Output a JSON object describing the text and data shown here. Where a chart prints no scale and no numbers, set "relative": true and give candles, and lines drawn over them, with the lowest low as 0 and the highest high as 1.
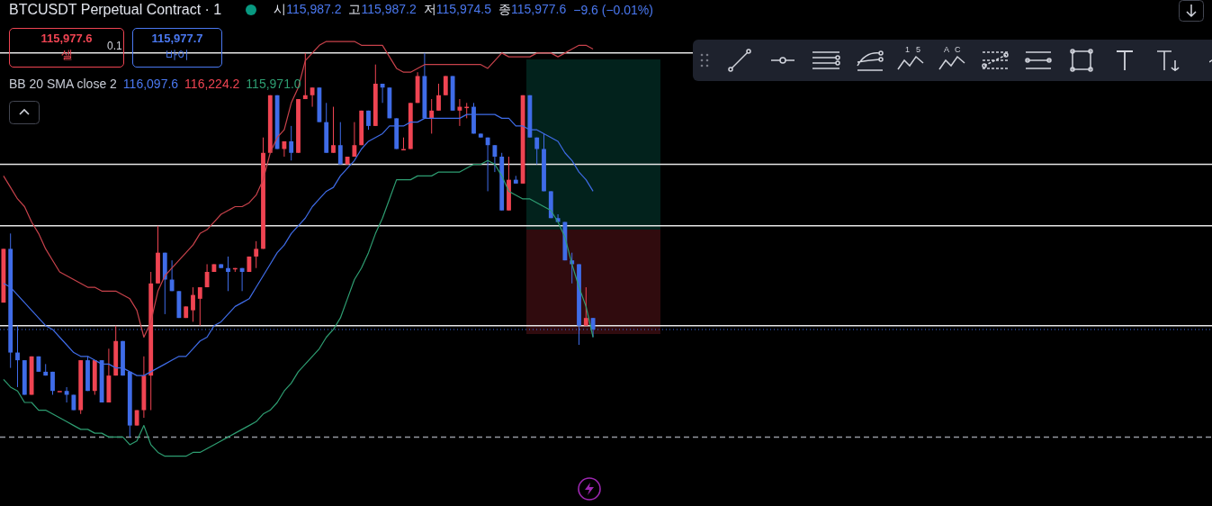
{
  "chart_data": {
    "type": "candlestick",
    "relative": true,
    "title": "BTCUSDT Perpetual Contract · 1",
    "annotations": [
      "시115,987.2",
      "고115,987.2",
      "저115,974.5",
      "종115,977.6",
      "−9.6 (−0.01%)",
      "115,977.6",
      "셀",
      "0.1",
      "115,977.7",
      "바이",
      "BB 20 SMA close 2",
      "116,097.6",
      "116,224.2",
      "115,971.0",
      "1",
      "5",
      "A",
      "C"
    ],
    "categories": [
      null,
      null,
      null,
      null,
      null,
      null,
      null,
      null,
      null,
      null,
      null,
      null,
      null,
      null,
      null,
      null,
      null,
      null,
      null,
      null,
      null,
      null,
      null,
      null,
      null,
      null,
      null,
      null,
      null,
      null,
      null,
      null,
      null,
      null,
      null,
      null,
      null,
      null,
      null,
      null,
      null,
      null,
      null,
      null,
      null,
      null,
      null,
      null,
      null,
      null,
      null,
      null,
      null,
      null,
      null,
      null,
      null,
      null,
      null,
      null,
      null,
      null,
      null,
      null,
      null,
      null,
      null,
      null,
      null,
      null,
      null,
      null,
      null,
      null,
      null,
      null,
      null,
      null,
      null,
      null,
      null,
      null,
      null,
      null,
      null
    ],
    "ohlc": [
      [
        0.35,
        0.49,
        0.35,
        0.49
      ],
      [
        0.49,
        0.53,
        0.18,
        0.22
      ],
      [
        0.22,
        0.29,
        0.13,
        0.2
      ],
      [
        0.2,
        0.2,
        0.11,
        0.11
      ],
      [
        0.11,
        0.21,
        0.11,
        0.21
      ],
      [
        0.21,
        0.21,
        0.17,
        0.17
      ],
      [
        0.17,
        0.19,
        0.16,
        0.16
      ],
      [
        0.17,
        0.17,
        0.11,
        0.12
      ],
      [
        0.12,
        0.12,
        0.12,
        0.12
      ],
      [
        0.12,
        0.13,
        0.09,
        0.11
      ],
      [
        0.11,
        0.11,
        0.07,
        0.07
      ],
      [
        0.07,
        0.2,
        0.06,
        0.2
      ],
      [
        0.2,
        0.21,
        0.12,
        0.12
      ],
      [
        0.12,
        0.2,
        0.11,
        0.2
      ],
      [
        0.2,
        0.2,
        0.09,
        0.09
      ],
      [
        0.09,
        0.23,
        0.09,
        0.16
      ],
      [
        0.16,
        0.29,
        0.16,
        0.25
      ],
      [
        0.25,
        0.25,
        0.16,
        0.16
      ],
      [
        0.17,
        0.17,
        0,
        0.03
      ],
      [
        0.03,
        0.07,
        0.03,
        0.07
      ],
      [
        0.07,
        0.21,
        0.05,
        0.16
      ],
      [
        0.16,
        0.43,
        0.07,
        0.4
      ],
      [
        0.4,
        0.55,
        0.4,
        0.48
      ],
      [
        0.48,
        0.48,
        0.32,
        0.41
      ],
      [
        0.41,
        0.46,
        0.38,
        0.38
      ],
      [
        0.38,
        0.38,
        0.31,
        0.31
      ],
      [
        0.31,
        0.34,
        0.31,
        0.34
      ],
      [
        0.33,
        0.39,
        0.3,
        0.37
      ],
      [
        0.36,
        0.39,
        0.29,
        0.39
      ],
      [
        0.39,
        0.45,
        0.39,
        0.43
      ],
      [
        0.43,
        0.45,
        0.43,
        0.45
      ],
      [
        0.45,
        0.45,
        0.44,
        0.44
      ],
      [
        0.44,
        0.47,
        0.38,
        0.43
      ],
      [
        0.44,
        0.44,
        0.43,
        0.44
      ],
      [
        0.44,
        0.44,
        0.38,
        0.43
      ],
      [
        0.43,
        0.47,
        0.43,
        0.47
      ],
      [
        0.47,
        0.51,
        0.44,
        0.49
      ],
      [
        0.49,
        0.78,
        0.49,
        0.74
      ],
      [
        0.74,
        0.89,
        0.74,
        0.89
      ],
      [
        0.89,
        0.89,
        0.75,
        0.75
      ],
      [
        0.75,
        0.77,
        0.73,
        0.77
      ],
      [
        0.77,
        0.81,
        0.72,
        0.74
      ],
      [
        0.74,
        0.88,
        0.74,
        0.88
      ],
      [
        0.88,
        1,
        0.88,
        0.89
      ],
      [
        0.89,
        0.91,
        0.86,
        0.91
      ],
      [
        0.91,
        0.91,
        0.82,
        0.82
      ],
      [
        0.82,
        0.87,
        0.74,
        0.74
      ],
      [
        0.74,
        0.86,
        0.74,
        0.76
      ],
      [
        0.76,
        0.82,
        0.71,
        0.71
      ],
      [
        0.71,
        0.73,
        0.71,
        0.73
      ],
      [
        0.73,
        0.82,
        0.73,
        0.76
      ],
      [
        0.76,
        0.85,
        0.76,
        0.85
      ],
      [
        0.85,
        0.85,
        0.8,
        0.81
      ],
      [
        0.81,
        0.97,
        0.81,
        0.92
      ],
      [
        0.92,
        0.92,
        0.87,
        0.91
      ],
      [
        0.91,
        0.91,
        0.83,
        0.83
      ],
      [
        0.83,
        0.83,
        0.75,
        0.75
      ],
      [
        0.75,
        0.78,
        0.75,
        0.75
      ],
      [
        0.75,
        0.87,
        0.75,
        0.87
      ],
      [
        0.87,
        0.95,
        0.87,
        0.94
      ],
      [
        0.94,
        1,
        0.83,
        0.83
      ],
      [
        0.83,
        0.88,
        0.79,
        0.85
      ],
      [
        0.85,
        0.92,
        0.85,
        0.89
      ],
      [
        0.89,
        0.94,
        0.89,
        0.94
      ],
      [
        0.94,
        0.94,
        0.85,
        0.85
      ],
      [
        0.85,
        0.88,
        0.81,
        0.86
      ],
      [
        0.86,
        0.87,
        0.83,
        0.86
      ],
      [
        0.86,
        0.87,
        0.79,
        0.79
      ],
      [
        0.79,
        0.79,
        0.78,
        0.78
      ],
      [
        0.78,
        0.78,
        0.64,
        0.76
      ],
      [
        0.76,
        0.76,
        0.69,
        0.73
      ],
      [
        0.73,
        0.74,
        0.59,
        0.59
      ],
      [
        0.59,
        0.73,
        0.59,
        0.67
      ],
      [
        0.67,
        0.68,
        0.66,
        0.66
      ],
      [
        0.66,
        0.89,
        0.66,
        0.89
      ],
      [
        0.89,
        0.89,
        0.78,
        0.78
      ],
      [
        0.78,
        0.78,
        0.71,
        0.75
      ],
      [
        0.75,
        0.79,
        0.64,
        0.64
      ],
      [
        0.64,
        0.64,
        0.57,
        0.57
      ],
      [
        0.57,
        0.58,
        0.56,
        0.56
      ],
      [
        0.56,
        0.56,
        0.46,
        0.46
      ],
      [
        0.46,
        0.48,
        0.4,
        0.45
      ],
      [
        0.45,
        0.45,
        0.24,
        0.29
      ],
      [
        0.29,
        0.39,
        0.29,
        0.31
      ],
      [
        0.31,
        0.31,
        0.26,
        0.28
      ]
    ],
    "colors": [
      "#ef4452",
      "#3f6ce8",
      "#3f6ce8",
      "#3f6ce8",
      "#ef4452",
      "#3f6ce8",
      "#3f6ce8",
      "#3f6ce8",
      "#ef4452",
      "#3f6ce8",
      "#3f6ce8",
      "#ef4452",
      "#3f6ce8",
      "#ef4452",
      "#3f6ce8",
      "#ef4452",
      "#ef4452",
      "#3f6ce8",
      "#3f6ce8",
      "#ef4452",
      "#ef4452",
      "#ef4452",
      "#ef4452",
      "#3f6ce8",
      "#3f6ce8",
      "#3f6ce8",
      "#ef4452",
      "#ef4452",
      "#ef4452",
      "#ef4452",
      "#ef4452",
      "#3f6ce8",
      "#3f6ce8",
      "#ef4452",
      "#3f6ce8",
      "#ef4452",
      "#ef4452",
      "#ef4452",
      "#ef4452",
      "#3f6ce8",
      "#ef4452",
      "#3f6ce8",
      "#ef4452",
      "#ef4452",
      "#ef4452",
      "#3f6ce8",
      "#3f6ce8",
      "#ef4452",
      "#3f6ce8",
      "#ef4452",
      "#ef4452",
      "#ef4452",
      "#3f6ce8",
      "#ef4452",
      "#3f6ce8",
      "#3f6ce8",
      "#3f6ce8",
      "#ef4452",
      "#ef4452",
      "#ef4452",
      "#3f6ce8",
      "#ef4452",
      "#ef4452",
      "#ef4452",
      "#3f6ce8",
      "#ef4452",
      "#ef4452",
      "#3f6ce8",
      "#3f6ce8",
      "#3f6ce8",
      "#3f6ce8",
      "#3f6ce8",
      "#ef4452",
      "#3f6ce8",
      "#ef4452",
      "#3f6ce8",
      "#3f6ce8",
      "#3f6ce8",
      "#3f6ce8",
      "#3f6ce8",
      "#3f6ce8",
      "#3f6ce8",
      "#3f6ce8",
      "#ef4452",
      "#3f6ce8"
    ],
    "series": [
      {
        "type": "line",
        "color": "#c8424b",
        "values": [
          0.68,
          0.65,
          0.62,
          0.6,
          0.56,
          0.53,
          0.49,
          0.46,
          0.43,
          0.42,
          0.41,
          0.4,
          0.39,
          0.39,
          0.38,
          0.38,
          0.38,
          0.37,
          0.36,
          0.33,
          0.26,
          0.3,
          0.38,
          0.42,
          0.44,
          0.46,
          0.48,
          0.5,
          0.53,
          0.54,
          0.56,
          0.58,
          0.59,
          0.6,
          0.6,
          0.61,
          0.63,
          0.67,
          0.74,
          0.78,
          0.8,
          0.87,
          0.91,
          0.98,
          1.0,
          1.02,
          1.03,
          1.03,
          1.03,
          1.03,
          1.03,
          1.02,
          1.02,
          1.02,
          1.02,
          0.99,
          0.96,
          0.95,
          0.95,
          0.96,
          0.97,
          0.97,
          0.97,
          0.97,
          0.97,
          0.97,
          0.97,
          0.97,
          0.97,
          0.96,
          0.98,
          1.0,
          0.99,
          0.99,
          0.99,
          0.99,
          1.0,
          1.0,
          1.0,
          0.99,
          1.0,
          1.01,
          1.02,
          1.02,
          1.01
        ]
      },
      {
        "type": "line",
        "color": "#3f6ce8",
        "values": [
          0.4,
          0.39,
          0.37,
          0.35,
          0.33,
          0.31,
          0.29,
          0.28,
          0.26,
          0.24,
          0.22,
          0.21,
          0.21,
          0.2,
          0.19,
          0.19,
          0.18,
          0.18,
          0.17,
          0.16,
          0.16,
          0.17,
          0.18,
          0.19,
          0.2,
          0.21,
          0.21,
          0.23,
          0.25,
          0.26,
          0.29,
          0.3,
          0.32,
          0.34,
          0.35,
          0.36,
          0.39,
          0.42,
          0.45,
          0.48,
          0.5,
          0.53,
          0.55,
          0.57,
          0.6,
          0.62,
          0.64,
          0.65,
          0.68,
          0.7,
          0.72,
          0.75,
          0.77,
          0.78,
          0.79,
          0.81,
          0.81,
          0.81,
          0.82,
          0.82,
          0.83,
          0.83,
          0.83,
          0.83,
          0.83,
          0.83,
          0.84,
          0.84,
          0.84,
          0.84,
          0.84,
          0.83,
          0.83,
          0.81,
          0.81,
          0.8,
          0.8,
          0.79,
          0.78,
          0.77,
          0.74,
          0.72,
          0.69,
          0.67,
          0.64
        ]
      },
      {
        "type": "line",
        "color": "#2e9e72",
        "values": [
          0.15,
          0.13,
          0.12,
          0.09,
          0.09,
          0.07,
          0.07,
          0.06,
          0.05,
          0.04,
          0.03,
          0.02,
          0.02,
          0.01,
          0.01,
          0.0,
          0.0,
          0,
          -0.02,
          -0.01,
          0.03,
          -0.02,
          -0.04,
          -0.05,
          -0.05,
          -0.05,
          -0.05,
          -0.04,
          -0.04,
          -0.03,
          -0.02,
          -0.01,
          0,
          0.01,
          0.02,
          0.03,
          0.04,
          0.06,
          0.07,
          0.09,
          0.12,
          0.14,
          0.17,
          0.19,
          0.21,
          0.23,
          0.26,
          0.28,
          0.31,
          0.36,
          0.41,
          0.44,
          0.48,
          0.53,
          0.57,
          0.62,
          0.67,
          0.67,
          0.67,
          0.68,
          0.68,
          0.68,
          0.69,
          0.69,
          0.69,
          0.69,
          0.7,
          0.71,
          0.71,
          0.72,
          0.71,
          0.68,
          0.64,
          0.63,
          0.62,
          0.62,
          0.61,
          0.6,
          0.59,
          0.56,
          0.52,
          0.45,
          0.39,
          0.34,
          0.26
        ]
      }
    ],
    "ref_lines": [
      {
        "axis": "y",
        "value": 1,
        "color": "#e6e6e6",
        "line_style": "solid"
      },
      {
        "axis": "y",
        "value": 0.71,
        "color": "#e6e6e6",
        "line_style": "solid"
      },
      {
        "axis": "y",
        "value": 0.55,
        "color": "#e6e6e6",
        "line_style": "solid"
      },
      {
        "axis": "y",
        "value": 0.29,
        "color": "#e6e6e6",
        "line_style": "solid"
      },
      {
        "axis": "y",
        "value": 0.28,
        "color": "#3f6ce8",
        "line_style": "dotted"
      },
      {
        "axis": "y",
        "value": 0,
        "color": "#9598a1",
        "line_style": "dashed"
      }
    ],
    "marker": "none",
    "legend": false,
    "tick_labels": false
  }
}
